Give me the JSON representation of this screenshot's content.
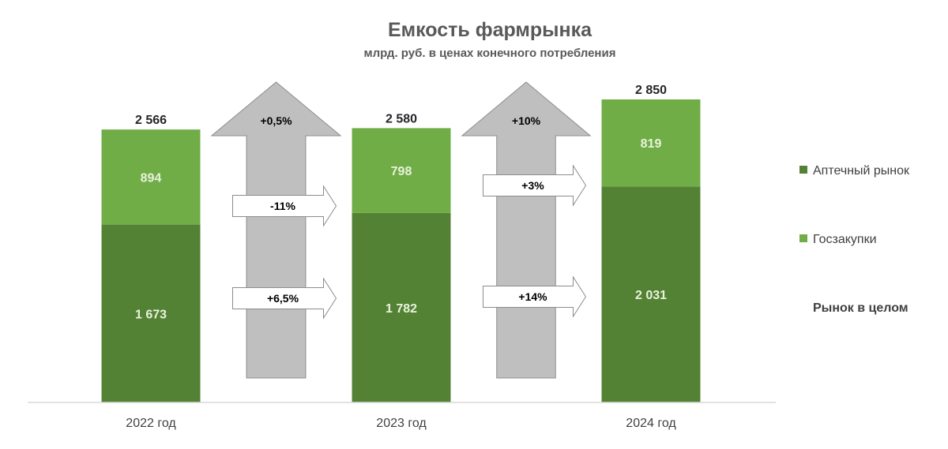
{
  "chart_data": {
    "type": "bar",
    "stacked": true,
    "title": "Емкость фармрынка",
    "subtitle": "млрд. руб. в ценах конечного потребления",
    "categories": [
      "2022 год",
      "2023 год",
      "2024 год"
    ],
    "series": [
      {
        "name": "Аптечный рынок",
        "values": [
          1673,
          1782,
          2031
        ],
        "labels": [
          "1 673",
          "1 782",
          "2 031"
        ],
        "color": "#548235"
      },
      {
        "name": "Госзакупки",
        "values": [
          894,
          798,
          819
        ],
        "labels": [
          "894",
          "798",
          "819"
        ],
        "color": "#70ad47"
      }
    ],
    "totals": {
      "values": [
        2566,
        2580,
        2850
      ],
      "labels": [
        "2 566",
        "2 580",
        "2 850"
      ]
    },
    "totals_legend_label": "Рынок в целом",
    "growth": [
      {
        "total": "+0,5%",
        "gov": "-11%",
        "pharmacy": "+6,5%"
      },
      {
        "total": "+10%",
        "gov": "+3%",
        "pharmacy": "+14%"
      }
    ],
    "ylim": [
      0,
      2850
    ],
    "legend_position": "right",
    "grid": false,
    "colors": {
      "pharmacy": "#548235",
      "gov": "#70ad47",
      "growth_arrow": "#bfbfbf"
    }
  }
}
